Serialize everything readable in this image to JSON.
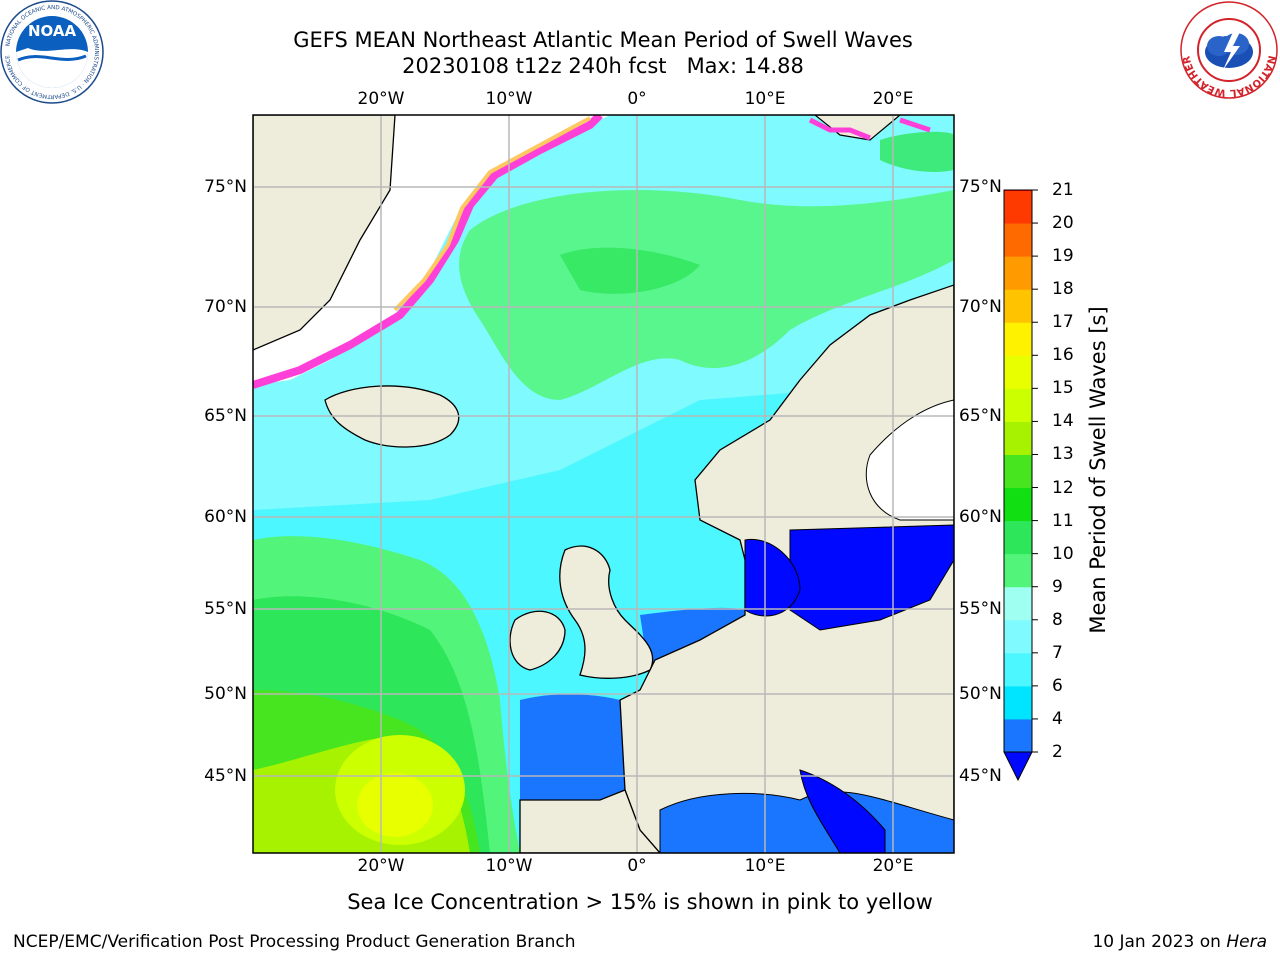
{
  "title": {
    "line1": "GEFS MEAN Northeast Atlantic Mean Period of Swell Waves",
    "line2": "20230108 t12z 240h fcst   Max: 14.88"
  },
  "map": {
    "lon_labels": [
      "20°W",
      "10°W",
      "0°",
      "10°E",
      "20°E"
    ],
    "lat_labels": [
      "75°N",
      "70°N",
      "65°N",
      "60°N",
      "55°N",
      "50°N",
      "45°N"
    ]
  },
  "colorbar": {
    "label": "Mean Period of Swell Waves [s]",
    "ticks": [
      "2",
      "4",
      "6",
      "7",
      "8",
      "9",
      "10",
      "11",
      "12",
      "13",
      "14",
      "15",
      "16",
      "17",
      "18",
      "19",
      "20",
      "21"
    ],
    "colors": [
      "#1a75ff",
      "#00e5ff",
      "#4df7ff",
      "#7ffaff",
      "#9ffff0",
      "#52f57a",
      "#2ee65a",
      "#12df12",
      "#46e51f",
      "#a6f200",
      "#ccff00",
      "#e8ff00",
      "#fff200",
      "#ffc300",
      "#ff9a00",
      "#ff6a00",
      "#ff3a00",
      "#ff0000"
    ],
    "under_color": "#0008ff"
  },
  "note": "Sea Ice Concentration > 15% is shown in pink to yellow",
  "footer": {
    "left": "NCEP/EMC/Verification Post Processing Product Generation Branch",
    "date": "10 Jan 2023 on ",
    "host": "Hera"
  },
  "logos": {
    "noaa": "NOAA",
    "noaa_ring": "NATIONAL OCEANIC AND ATMOSPHERIC ADMINISTRATION · U.S. DEPARTMENT OF COMMERCE",
    "nws_ring": "NATIONAL WEATHER SERVICE"
  }
}
